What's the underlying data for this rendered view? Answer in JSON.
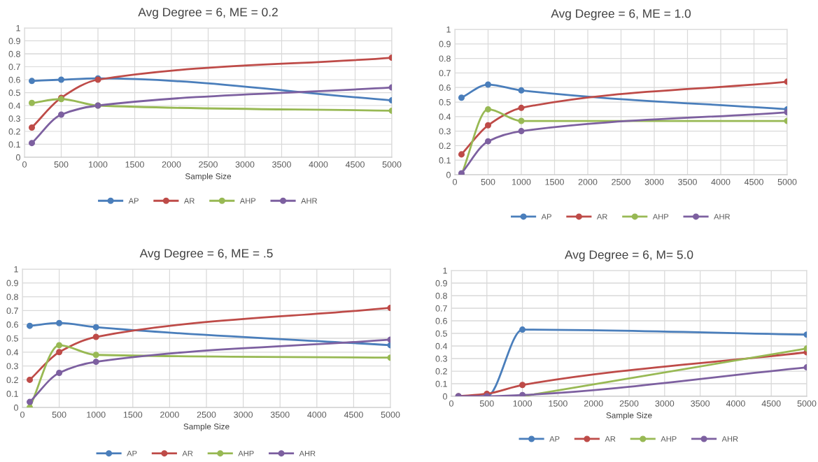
{
  "chart_data": [
    {
      "type": "line",
      "title": "Avg Degree = 6, ME = 0.2",
      "xlabel": "Sample Size",
      "x": [
        100,
        500,
        1000,
        5000
      ],
      "xlim": [
        0,
        5000
      ],
      "xticks": [
        0,
        500,
        1000,
        1500,
        2000,
        2500,
        3000,
        3500,
        4000,
        4500,
        5000
      ],
      "ylim": [
        0,
        1
      ],
      "yticks": [
        0,
        0.1,
        0.2,
        0.3,
        0.4,
        0.5,
        0.6,
        0.7,
        0.8,
        0.9,
        1
      ],
      "grid": true,
      "legend": "bottom",
      "marker": "circle",
      "line_style": "solid",
      "series": [
        {
          "name": "AP",
          "color": "#4a7ebb",
          "values": [
            0.59,
            0.6,
            0.61,
            0.44
          ]
        },
        {
          "name": "AR",
          "color": "#be4b48",
          "values": [
            0.23,
            0.46,
            0.6,
            0.77
          ]
        },
        {
          "name": "AHP",
          "color": "#98b954",
          "values": [
            0.42,
            0.45,
            0.4,
            0.36
          ]
        },
        {
          "name": "AHR",
          "color": "#7d60a0",
          "values": [
            0.11,
            0.33,
            0.4,
            0.54
          ]
        }
      ]
    },
    {
      "type": "line",
      "title": "Avg Degree = 6, ME = 1.0",
      "x": [
        100,
        500,
        1000,
        5000
      ],
      "xlim": [
        0,
        5000
      ],
      "xticks": [
        0,
        500,
        1000,
        1500,
        2000,
        2500,
        3000,
        3500,
        4000,
        4500,
        5000
      ],
      "ylim": [
        0,
        1
      ],
      "yticks": [
        0,
        0.1,
        0.2,
        0.3,
        0.4,
        0.5,
        0.6,
        0.7,
        0.8,
        0.9,
        1
      ],
      "grid": true,
      "legend": "bottom",
      "marker": "circle",
      "line_style": "solid",
      "series": [
        {
          "name": "AP",
          "color": "#4a7ebb",
          "values": [
            0.53,
            0.62,
            0.58,
            0.45
          ]
        },
        {
          "name": "AR",
          "color": "#be4b48",
          "values": [
            0.14,
            0.34,
            0.46,
            0.64
          ]
        },
        {
          "name": "AHP",
          "color": "#98b954",
          "values": [
            0.0,
            0.45,
            0.37,
            0.37
          ]
        },
        {
          "name": "AHR",
          "color": "#7d60a0",
          "values": [
            0.01,
            0.23,
            0.3,
            0.43
          ]
        }
      ]
    },
    {
      "type": "line",
      "title": "Avg Degree = 6, ME = .5",
      "xlabel": "Sample Size",
      "x": [
        100,
        500,
        1000,
        5000
      ],
      "xlim": [
        0,
        5000
      ],
      "xticks": [
        0,
        500,
        1000,
        1500,
        2000,
        2500,
        3000,
        3500,
        4000,
        4500,
        5000
      ],
      "ylim": [
        0,
        1
      ],
      "yticks": [
        0,
        0.1,
        0.2,
        0.3,
        0.4,
        0.5,
        0.6,
        0.7,
        0.8,
        0.9,
        1
      ],
      "grid": true,
      "legend": "bottom",
      "marker": "circle",
      "line_style": "solid",
      "series": [
        {
          "name": "AP",
          "color": "#4a7ebb",
          "values": [
            0.59,
            0.61,
            0.58,
            0.45
          ]
        },
        {
          "name": "AR",
          "color": "#be4b48",
          "values": [
            0.2,
            0.4,
            0.51,
            0.72
          ]
        },
        {
          "name": "AHP",
          "color": "#98b954",
          "values": [
            0.0,
            0.45,
            0.38,
            0.36
          ]
        },
        {
          "name": "AHR",
          "color": "#7d60a0",
          "values": [
            0.04,
            0.25,
            0.33,
            0.49
          ]
        }
      ]
    },
    {
      "type": "line",
      "title": "Avg Degree = 6, M= 5.0",
      "xlabel": "Sample Size",
      "x": [
        100,
        500,
        1000,
        5000
      ],
      "xlim": [
        0,
        5000
      ],
      "xticks": [
        0,
        500,
        1000,
        1500,
        2000,
        2500,
        3000,
        3500,
        4000,
        4500,
        5000
      ],
      "ylim": [
        0,
        1
      ],
      "yticks": [
        0,
        0.1,
        0.2,
        0.3,
        0.4,
        0.5,
        0.6,
        0.7,
        0.8,
        0.9,
        1
      ],
      "grid": true,
      "legend": "bottom",
      "marker": "circle",
      "line_style": "solid",
      "series": [
        {
          "name": "AP",
          "color": "#4a7ebb",
          "values": [
            0.0,
            0.0,
            0.53,
            0.49
          ]
        },
        {
          "name": "AR",
          "color": "#be4b48",
          "values": [
            0.0,
            0.02,
            0.09,
            0.35
          ]
        },
        {
          "name": "AHP",
          "color": "#98b954",
          "values": [
            null,
            null,
            0.0,
            0.38
          ]
        },
        {
          "name": "AHR",
          "color": "#7d60a0",
          "values": [
            0.0,
            0.0,
            0.01,
            0.23
          ]
        }
      ]
    }
  ]
}
